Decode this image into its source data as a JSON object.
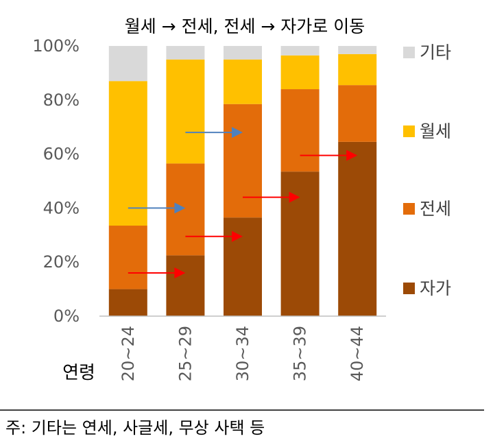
{
  "chart_data": {
    "type": "bar",
    "stacked": true,
    "percent": true,
    "title": "월세 → 전세, 전세 → 자가로 이동",
    "xlabel": "연령",
    "ylabel": "",
    "ylim": [
      0,
      100
    ],
    "yticks": [
      "0%",
      "20%",
      "40%",
      "60%",
      "80%",
      "100%"
    ],
    "categories": [
      "20~24",
      "25~29",
      "30~34",
      "35~39",
      "40~44"
    ],
    "series": [
      {
        "name": "자가",
        "color": "#9C4A06",
        "values": [
          10,
          22.5,
          36.5,
          53.5,
          64.5
        ]
      },
      {
        "name": "전세",
        "color": "#E36C0A",
        "values": [
          23.5,
          34,
          42,
          30.5,
          21
        ]
      },
      {
        "name": "월세",
        "color": "#FFC000",
        "values": [
          53.5,
          38.5,
          16.5,
          12.5,
          11.5
        ]
      },
      {
        "name": "기타",
        "color": "#D9D9D9",
        "values": [
          13,
          5,
          5,
          3.5,
          3
        ]
      }
    ],
    "legend_order": [
      "기타",
      "월세",
      "전세",
      "자가"
    ],
    "legend_position": "right",
    "grid": false,
    "annotations": [
      {
        "type": "arrow",
        "color": "#4F81BD",
        "from_category": "20~24",
        "to_category": "25~29",
        "y": 40
      },
      {
        "type": "arrow",
        "color": "#4F81BD",
        "from_category": "25~29",
        "to_category": "30~34",
        "y": 68
      },
      {
        "type": "arrow",
        "color": "#FF0000",
        "from_category": "20~24",
        "to_category": "25~29",
        "y": 16
      },
      {
        "type": "arrow",
        "color": "#FF0000",
        "from_category": "25~29",
        "to_category": "30~34",
        "y": 29.5
      },
      {
        "type": "arrow",
        "color": "#FF0000",
        "from_category": "30~34",
        "to_category": "35~39",
        "y": 44
      },
      {
        "type": "arrow",
        "color": "#FF0000",
        "from_category": "35~39",
        "to_category": "40~44",
        "y": 59.5
      }
    ]
  },
  "note": "주: 기타는 연세, 사글세, 무상 사택 등"
}
